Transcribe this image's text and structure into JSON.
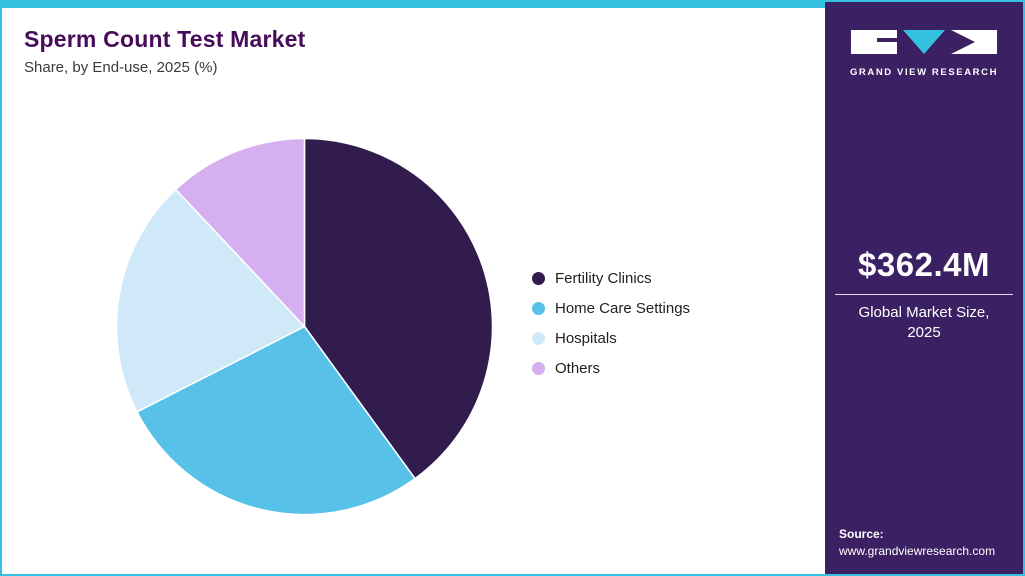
{
  "page": {
    "title": "Sperm Count Test Market",
    "subtitle": "Share, by End-use, 2025 (%)"
  },
  "chart_data": {
    "type": "pie",
    "title": "Sperm Count Test Market Share, by End-use, 2025 (%)",
    "categories": [
      "Fertility Clinics",
      "Home Care Settings",
      "Hospitals",
      "Others"
    ],
    "values": [
      40.0,
      27.5,
      20.5,
      12.0
    ],
    "colors": [
      "#321b4d",
      "#57c1e8",
      "#cfe9f8",
      "#d6aff0"
    ],
    "legend_position": "right",
    "start_angle": "top",
    "direction": "clockwise"
  },
  "sidebar": {
    "logo_text": "GRAND VIEW RESEARCH",
    "market_size": "$362.4M",
    "market_size_label_line1": "Global Market Size,",
    "market_size_label_line2": "2025",
    "source_label": "Source:",
    "source_url": "www.grandviewresearch.com"
  },
  "theme": {
    "accent": "#35c2e2",
    "sidebar_bg": "#3b2064",
    "title_color": "#460b59"
  }
}
